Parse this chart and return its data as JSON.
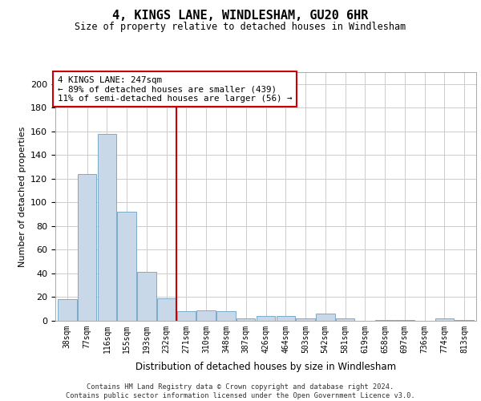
{
  "title": "4, KINGS LANE, WINDLESHAM, GU20 6HR",
  "subtitle": "Size of property relative to detached houses in Windlesham",
  "xlabel": "Distribution of detached houses by size in Windlesham",
  "ylabel": "Number of detached properties",
  "categories": [
    "38sqm",
    "77sqm",
    "116sqm",
    "155sqm",
    "193sqm",
    "232sqm",
    "271sqm",
    "310sqm",
    "348sqm",
    "387sqm",
    "426sqm",
    "464sqm",
    "503sqm",
    "542sqm",
    "581sqm",
    "619sqm",
    "658sqm",
    "697sqm",
    "736sqm",
    "774sqm",
    "813sqm"
  ],
  "values": [
    18,
    124,
    158,
    92,
    41,
    19,
    8,
    9,
    8,
    2,
    4,
    4,
    2,
    6,
    2,
    0,
    1,
    1,
    0,
    2,
    1
  ],
  "bar_color": "#c8d8e8",
  "bar_edge_color": "#7aaaca",
  "vline_x": 5.5,
  "vline_color": "#cc0000",
  "annotation_text": "4 KINGS LANE: 247sqm\n← 89% of detached houses are smaller (439)\n11% of semi-detached houses are larger (56) →",
  "annotation_box_color": "#cc0000",
  "ylim": [
    0,
    210
  ],
  "yticks": [
    0,
    20,
    40,
    60,
    80,
    100,
    120,
    140,
    160,
    180,
    200
  ],
  "footer": "Contains HM Land Registry data © Crown copyright and database right 2024.\nContains public sector information licensed under the Open Government Licence v3.0.",
  "bg_color": "#ffffff",
  "grid_color": "#cccccc"
}
